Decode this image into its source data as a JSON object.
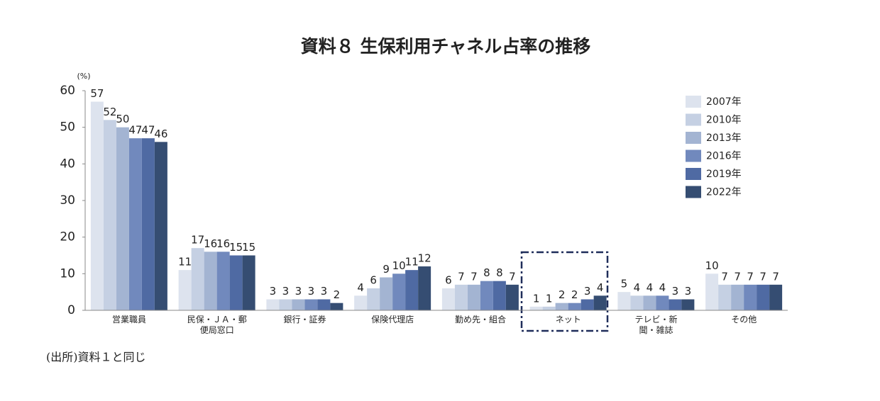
{
  "chart_data": {
    "type": "bar",
    "title": "資料８ 生保利用チャネル占率の推移",
    "y_unit": "(%)",
    "note": "(出所)資料１と同じ",
    "categories": [
      "営業職員",
      "民保・ＪＡ・郵\n便局窓口",
      "銀行・証券",
      "保険代理店",
      "勤め先・組合",
      "ネット",
      "テレビ・新\n聞・雑誌",
      "その他"
    ],
    "series": [
      {
        "name": "2007年",
        "color": "#dde3ee",
        "values": [
          57,
          11,
          3,
          4,
          6,
          1,
          5,
          10
        ]
      },
      {
        "name": "2010年",
        "color": "#c5d0e3",
        "values": [
          52,
          17,
          3,
          6,
          7,
          1,
          4,
          7
        ]
      },
      {
        "name": "2013年",
        "color": "#a3b4d2",
        "values": [
          50,
          16,
          3,
          9,
          7,
          2,
          4,
          7
        ]
      },
      {
        "name": "2016年",
        "color": "#7189bd",
        "values": [
          47,
          16,
          3,
          10,
          8,
          2,
          4,
          7
        ]
      },
      {
        "name": "2019年",
        "color": "#4f6aa3",
        "values": [
          47,
          15,
          3,
          11,
          8,
          3,
          3,
          7
        ]
      },
      {
        "name": "2022年",
        "color": "#354d72",
        "values": [
          46,
          15,
          2,
          12,
          7,
          4,
          3,
          7
        ]
      }
    ],
    "ylim": [
      0,
      60
    ],
    "yticks": [
      0,
      10,
      20,
      30,
      40,
      50,
      60
    ],
    "grid": false,
    "legend": "right"
  }
}
